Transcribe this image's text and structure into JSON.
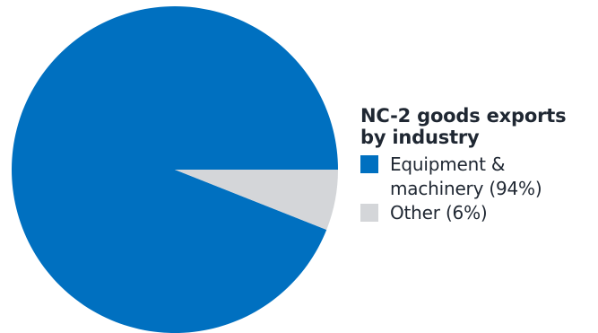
{
  "chart_data": {
    "type": "pie",
    "title": "NC-2 goods exports by industry",
    "slices": [
      {
        "label": "Equipment & machinery (94%)",
        "value": 94,
        "color": "#0070c0"
      },
      {
        "label": "Other (6%)",
        "value": 6,
        "color": "#d4d6d9"
      }
    ],
    "legend_position": "right"
  }
}
